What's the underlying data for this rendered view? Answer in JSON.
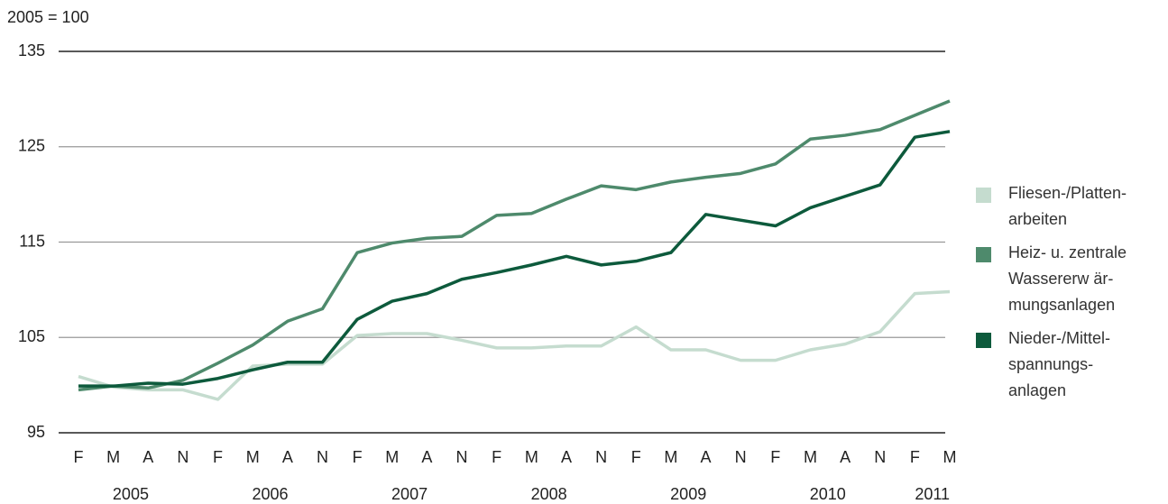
{
  "chart_data": {
    "type": "line",
    "title": "2005 = 100",
    "categories": [
      "F",
      "M",
      "A",
      "N",
      "F",
      "M",
      "A",
      "N",
      "F",
      "M",
      "A",
      "N",
      "F",
      "M",
      "A",
      "N",
      "F",
      "M",
      "A",
      "N",
      "F",
      "M",
      "A",
      "N",
      "F",
      "M"
    ],
    "years": [
      "2005",
      "2006",
      "2007",
      "2008",
      "2009",
      "2010",
      "2011"
    ],
    "ylim": [
      95,
      135
    ],
    "yticks": [
      95,
      105,
      115,
      125,
      135
    ],
    "grid": true,
    "legend": "right",
    "series": [
      {
        "name": "Fliesen-/Platten-\narbeiten",
        "color": "#c5dccf",
        "values": [
          100.9,
          99.8,
          99.5,
          99.5,
          98.5,
          102.0,
          102.2,
          102.2,
          105.2,
          105.4,
          105.4,
          104.7,
          103.9,
          103.9,
          104.1,
          104.1,
          106.1,
          103.7,
          103.7,
          102.6,
          102.6,
          103.7,
          104.3,
          105.6,
          109.6,
          109.8
        ]
      },
      {
        "name": "Heiz- u. zentrale\nWassererw är-\nmungsanlagen",
        "color": "#4e8a6c",
        "values": [
          99.5,
          99.9,
          99.7,
          100.5,
          102.3,
          104.2,
          106.7,
          108.0,
          113.9,
          114.9,
          115.4,
          115.6,
          117.8,
          118.0,
          119.5,
          120.9,
          120.5,
          121.3,
          121.8,
          122.2,
          123.2,
          125.8,
          126.2,
          126.8,
          128.3,
          129.8
        ]
      },
      {
        "name": "Nieder-/Mittel-\nspannungs-\nanlagen",
        "color": "#0d5a3c",
        "values": [
          99.9,
          99.9,
          100.2,
          100.1,
          100.7,
          101.6,
          102.4,
          102.4,
          106.9,
          108.8,
          109.6,
          111.1,
          111.8,
          112.6,
          113.5,
          112.6,
          113.0,
          113.9,
          117.9,
          117.3,
          116.7,
          118.6,
          119.8,
          121.0,
          126.0,
          126.6
        ]
      }
    ]
  }
}
